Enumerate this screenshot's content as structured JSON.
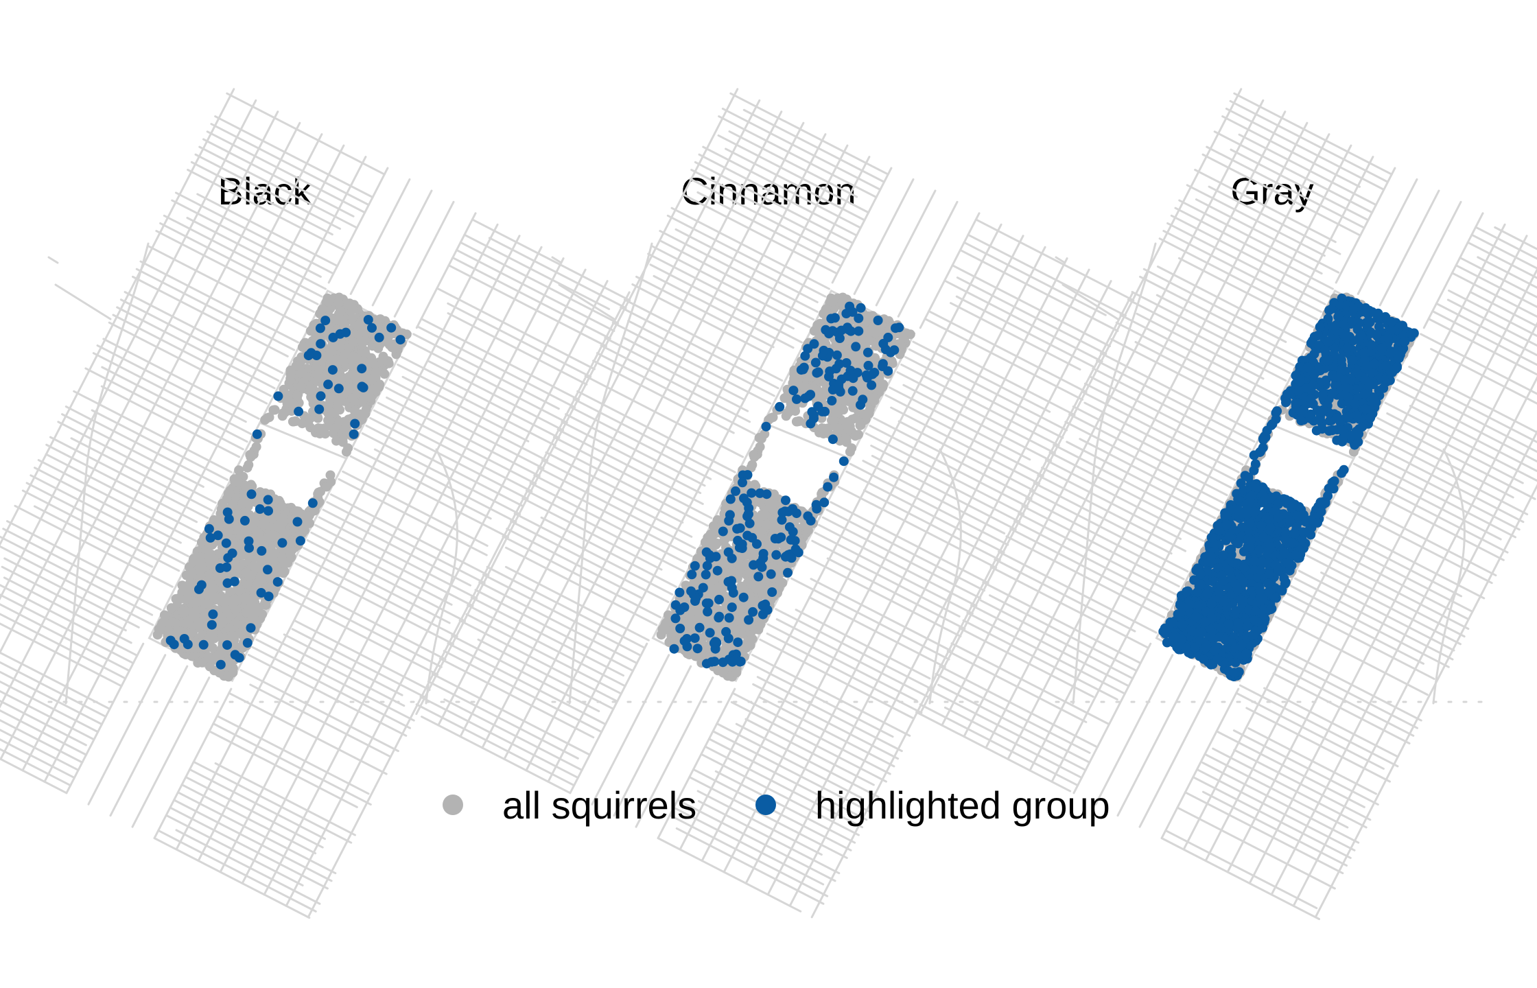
{
  "colors": {
    "background": "#ffffff",
    "streets": "#d6d6d6",
    "all_squirrels": "#b3b3b3",
    "highlighted_group": "#0a5ca3"
  },
  "panels": [
    {
      "title": "Black",
      "highlight": "sparse"
    },
    {
      "title": "Cinnamon",
      "highlight": "medium"
    },
    {
      "title": "Gray",
      "highlight": "dense"
    }
  ],
  "legend": {
    "all_label": "all squirrels",
    "highlight_label": "highlighted group"
  }
}
